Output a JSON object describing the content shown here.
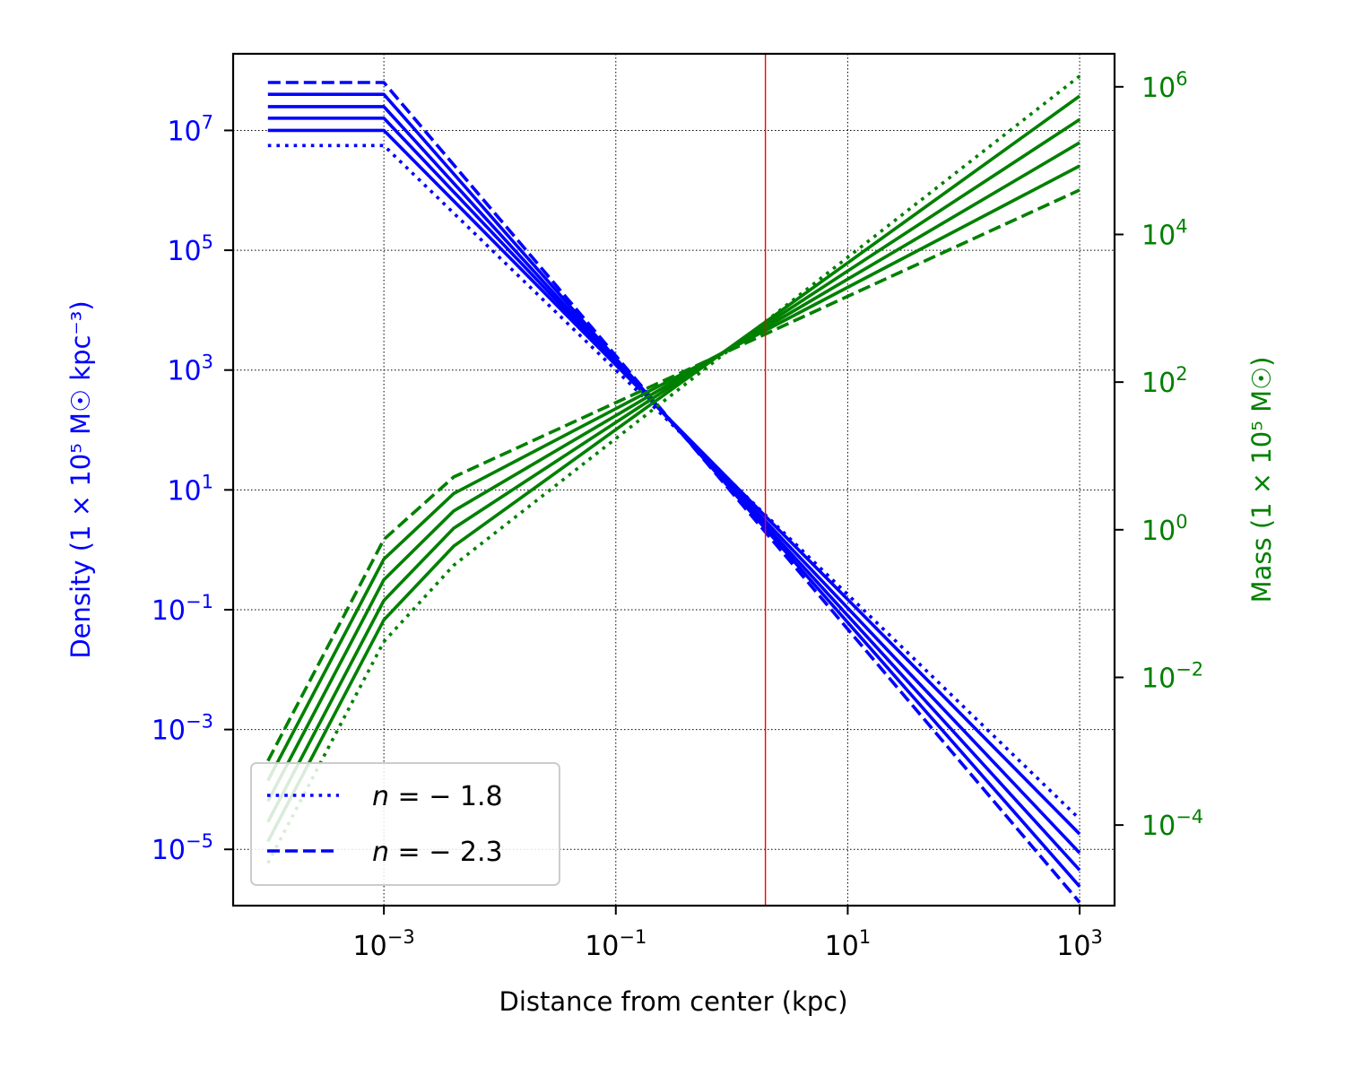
{
  "chart_data": {
    "type": "line",
    "x_axis": {
      "label": "Distance from center (kpc)",
      "scale": "log",
      "range": [
        5.01e-05,
        2000
      ],
      "ticks": [
        {
          "value": 0.001,
          "base": "10",
          "exp": "−3"
        },
        {
          "value": 0.1,
          "base": "10",
          "exp": "−1"
        },
        {
          "value": 10,
          "base": "10",
          "exp": "1"
        },
        {
          "value": 1000,
          "base": "10",
          "exp": "3"
        }
      ]
    },
    "y_left": {
      "label": "Density (1 × 10⁵ M☉ kpc⁻³)",
      "scale": "log",
      "range": [
        1.15e-06,
        190000000.0
      ],
      "color": "#0000ff",
      "ticks": [
        {
          "value": 1e-05,
          "base": "10",
          "exp": "−5"
        },
        {
          "value": 0.001,
          "base": "10",
          "exp": "−3"
        },
        {
          "value": 0.1,
          "base": "10",
          "exp": "−1"
        },
        {
          "value": 10,
          "base": "10",
          "exp": "1"
        },
        {
          "value": 1000,
          "base": "10",
          "exp": "3"
        },
        {
          "value": 100000,
          "base": "10",
          "exp": "5"
        },
        {
          "value": 10000000,
          "base": "10",
          "exp": "7"
        }
      ]
    },
    "y_right": {
      "label": "Mass (1 × 10⁵ M☉)",
      "scale": "log",
      "range": [
        8.1e-06,
        2800000
      ],
      "color": "#008000",
      "ticks": [
        {
          "value": 0.0001,
          "base": "10",
          "exp": "−4"
        },
        {
          "value": 0.01,
          "base": "10",
          "exp": "−2"
        },
        {
          "value": 1,
          "base": "10",
          "exp": "0"
        },
        {
          "value": 100,
          "base": "10",
          "exp": "2"
        },
        {
          "value": 10000,
          "base": "10",
          "exp": "4"
        },
        {
          "value": 1000000,
          "base": "10",
          "exp": "6"
        }
      ]
    },
    "grid": true,
    "vline_x": 1.95,
    "legend": {
      "position": "lower-left",
      "entries": [
        {
          "label_prefix": "n",
          "label_value": " = − 1.8",
          "style": "dotted"
        },
        {
          "label_prefix": "n",
          "label_value": " = − 2.3",
          "style": "dashed"
        }
      ]
    },
    "density_series": [
      {
        "style": "dotted",
        "points": [
          [
            0.0001,
            5600000
          ],
          [
            0.001,
            5600000
          ],
          [
            1000,
            3.2e-05
          ]
        ]
      },
      {
        "style": "solid",
        "points": [
          [
            0.0001,
            10000000
          ],
          [
            0.001,
            10000000
          ],
          [
            1000,
            1.8e-05
          ]
        ]
      },
      {
        "style": "solid",
        "points": [
          [
            0.0001,
            16000000
          ],
          [
            0.001,
            16000000
          ],
          [
            1000,
            8.7e-06
          ]
        ]
      },
      {
        "style": "solid",
        "points": [
          [
            0.0001,
            25000000
          ],
          [
            0.001,
            25000000
          ],
          [
            1000,
            4.5e-06
          ]
        ]
      },
      {
        "style": "solid",
        "points": [
          [
            0.0001,
            40000000
          ],
          [
            0.001,
            40000000
          ],
          [
            1000,
            2.4e-06
          ]
        ]
      },
      {
        "style": "dashed",
        "points": [
          [
            0.0001,
            63000000
          ],
          [
            0.001,
            63000000
          ],
          [
            1000,
            1.3e-06
          ]
        ]
      }
    ],
    "mass_series": [
      {
        "style": "dotted",
        "points": [
          [
            0.0001,
            3.05e-05
          ],
          [
            0.001,
            0.0305
          ],
          [
            0.004,
            0.33
          ],
          [
            1000,
            1400000.0
          ]
        ]
      },
      {
        "style": "solid",
        "points": [
          [
            0.0001,
            6e-05
          ],
          [
            0.001,
            0.06
          ],
          [
            0.004,
            0.6
          ],
          [
            1000,
            750000.0
          ]
        ]
      },
      {
        "style": "solid",
        "points": [
          [
            0.0001,
            0.00011
          ],
          [
            0.001,
            0.11
          ],
          [
            0.004,
            1.05
          ],
          [
            1000,
            360000.0
          ]
        ]
      },
      {
        "style": "solid",
        "points": [
          [
            0.0001,
            0.00021
          ],
          [
            0.001,
            0.21
          ],
          [
            0.004,
            1.8
          ],
          [
            1000,
            175000.0
          ]
        ]
      },
      {
        "style": "solid",
        "points": [
          [
            0.0001,
            0.0004
          ],
          [
            0.001,
            0.4
          ],
          [
            0.004,
            3.1
          ],
          [
            1000,
            85000.0
          ]
        ]
      },
      {
        "style": "dashed",
        "points": [
          [
            0.0001,
            0.00074
          ],
          [
            0.001,
            0.74
          ],
          [
            0.004,
            5.2
          ],
          [
            1000,
            40000.0
          ]
        ]
      }
    ]
  }
}
